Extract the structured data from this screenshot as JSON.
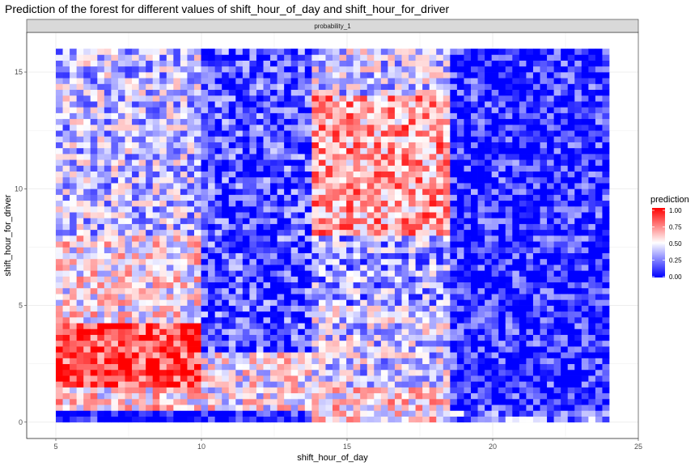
{
  "chart_data": {
    "type": "heatmap",
    "title": "Prediction of the forest for different values of shift_hour_of_day and shift_hour_for_driver",
    "xlabel": "shift_hour_of_day",
    "ylabel": "shift_hour_for_driver",
    "facet_label": "probability_1",
    "xlim": [
      4,
      25
    ],
    "ylim": [
      -0.7,
      16.7
    ],
    "x_ticks": [
      5,
      10,
      15,
      20,
      25
    ],
    "y_ticks": [
      0,
      5,
      10,
      15
    ],
    "x_range": [
      5,
      24
    ],
    "y_range": [
      0,
      16
    ],
    "grid": true,
    "legend": {
      "title": "prediction",
      "position": "right",
      "ticks": [
        "1.00",
        "0.75",
        "0.50",
        "0.25",
        "0.00"
      ],
      "colors": {
        "low": "#0000ff",
        "mid": "#ffffff",
        "high": "#ff0000"
      }
    },
    "regions": [
      {
        "x": [
          5,
          10
        ],
        "y": [
          0,
          0.6
        ],
        "value": 0.02
      },
      {
        "x": [
          5,
          10
        ],
        "y": [
          0.6,
          1.6
        ],
        "value": 0.55
      },
      {
        "x": [
          5,
          10
        ],
        "y": [
          1.6,
          4.2
        ],
        "value": 0.88
      },
      {
        "x": [
          5,
          10
        ],
        "y": [
          4.2,
          8
        ],
        "value": 0.52
      },
      {
        "x": [
          5,
          10
        ],
        "y": [
          8,
          16
        ],
        "value": 0.38
      },
      {
        "x": [
          10,
          13.7
        ],
        "y": [
          0,
          0.6
        ],
        "value": 0.02
      },
      {
        "x": [
          10,
          13.7
        ],
        "y": [
          0.6,
          3
        ],
        "value": 0.5
      },
      {
        "x": [
          10,
          13.7
        ],
        "y": [
          3,
          16
        ],
        "value": 0.15
      },
      {
        "x": [
          13.7,
          18.6
        ],
        "y": [
          0,
          1.5
        ],
        "value": 0.55
      },
      {
        "x": [
          13.7,
          18.6
        ],
        "y": [
          1.5,
          5
        ],
        "value": 0.4
      },
      {
        "x": [
          13.7,
          18.6
        ],
        "y": [
          5,
          8
        ],
        "value": 0.3
      },
      {
        "x": [
          13.7,
          18.6
        ],
        "y": [
          8,
          14
        ],
        "value": 0.68
      },
      {
        "x": [
          13.7,
          18.6
        ],
        "y": [
          14,
          16
        ],
        "value": 0.4
      },
      {
        "x": [
          18.6,
          24
        ],
        "y": [
          0,
          0.6
        ],
        "value": 0.25
      },
      {
        "x": [
          18.6,
          24
        ],
        "y": [
          0.6,
          16
        ],
        "value": 0.08
      }
    ]
  }
}
